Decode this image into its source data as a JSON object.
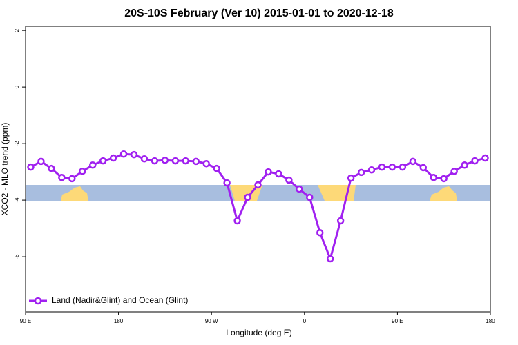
{
  "chart_data": {
    "type": "line",
    "title": "20S-10S February (Ver 10)   2015-01-01 to 2020-12-18",
    "x_label": "Longitude (deg E)",
    "y_label": "XCO2 - MLO trend (ppm)",
    "x": [
      95,
      105,
      115,
      125,
      135,
      145,
      155,
      165,
      175,
      185,
      195,
      205,
      215,
      225,
      235,
      245,
      255,
      265,
      275,
      285,
      295,
      305,
      315,
      325,
      335,
      345,
      355,
      365,
      375,
      385,
      395,
      405,
      415,
      425,
      435,
      445,
      455,
      465,
      475,
      485,
      495,
      505,
      515,
      525,
      535
    ],
    "series": [
      {
        "name": "Land (Nadir&Glint) and Ocean (Glint)",
        "color": "#a020f0",
        "values": [
          -2.83,
          -2.63,
          -2.88,
          -3.2,
          -3.24,
          -2.98,
          -2.76,
          -2.61,
          -2.51,
          -2.37,
          -2.39,
          -2.54,
          -2.61,
          -2.59,
          -2.61,
          -2.61,
          -2.63,
          -2.71,
          -2.88,
          -3.39,
          -4.73,
          -3.9,
          -3.46,
          -3.0,
          -3.07,
          -3.29,
          -3.61,
          -3.9,
          -5.15,
          -6.07,
          -4.73,
          -3.22,
          -3.02,
          -2.93,
          -2.83,
          -2.83,
          -2.83,
          -2.63,
          -2.85,
          -3.2,
          -3.24,
          -2.98,
          -2.76,
          -2.61,
          -2.51
        ]
      }
    ],
    "xlim": [
      90,
      540
    ],
    "xticks": [
      {
        "value": 90,
        "label": "90 E"
      },
      180,
      {
        "value": 270,
        "label": "90 W"
      },
      {
        "value": 360,
        "label": "0"
      },
      {
        "value": 450,
        "label": "90 E"
      },
      {
        "value": 540,
        "label": "180"
      }
    ],
    "ylim": [
      -7.95,
      2.15
    ],
    "yticks": [
      2,
      0,
      -2,
      -4,
      -6
    ],
    "legend": "bottom-left"
  }
}
